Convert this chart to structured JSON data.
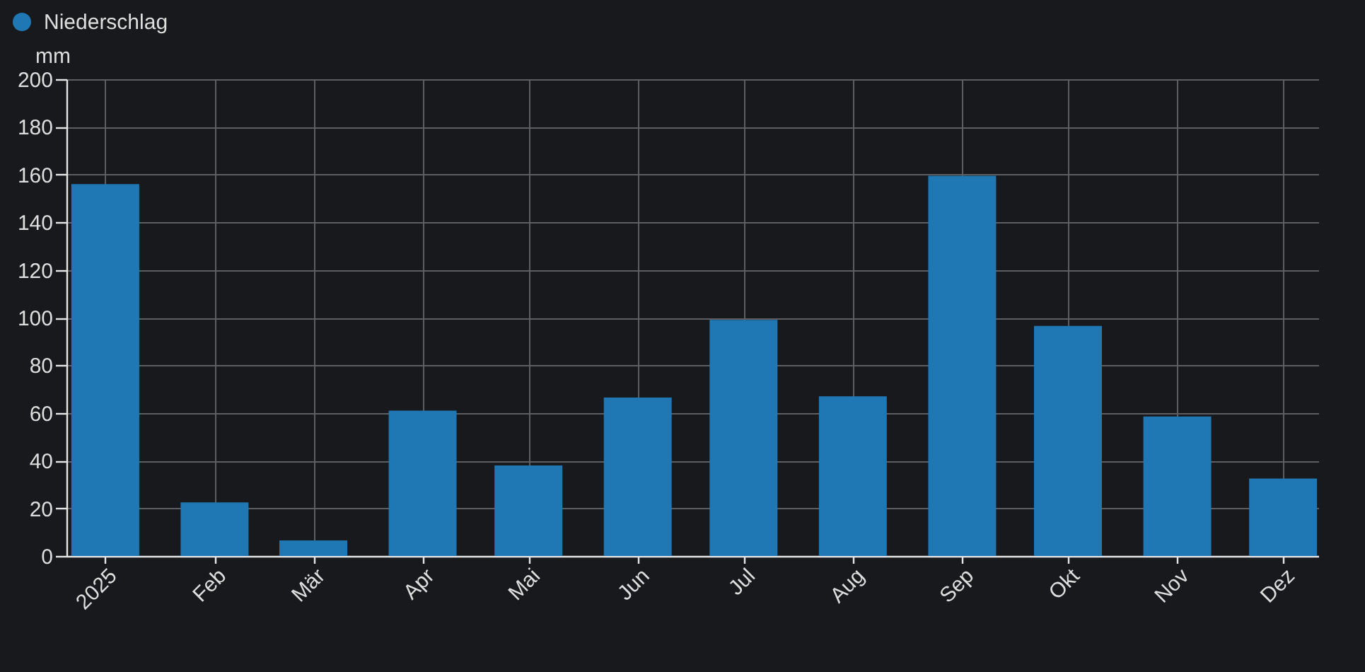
{
  "chart_data": {
    "type": "bar",
    "ylabel": "mm",
    "x": [
      "2025-01",
      "2025-02",
      "2025-03",
      "2025-04",
      "2025-05",
      "2025-06",
      "2025-07",
      "2025-08",
      "2025-09",
      "2025-10",
      "2025-11",
      "2025-12"
    ],
    "series": [
      {
        "name": "Niederschlag",
        "color": "#1f77b4",
        "values": [
          156,
          22.5,
          6.5,
          61,
          38,
          66.5,
          99,
          67,
          159.5,
          96.5,
          58.5,
          32.5
        ]
      }
    ],
    "xlim": [
      "2024-12-21",
      "2025-12-11"
    ],
    "xticks": [
      {
        "value": "2025-01",
        "label": "2025"
      },
      {
        "value": "2025-02",
        "label": "Feb"
      },
      {
        "value": "2025-03",
        "label": "Mär"
      },
      {
        "value": "2025-04",
        "label": "Apr"
      },
      {
        "value": "2025-05",
        "label": "Mai"
      },
      {
        "value": "2025-06",
        "label": "Jun"
      },
      {
        "value": "2025-07",
        "label": "Jul"
      },
      {
        "value": "2025-08",
        "label": "Aug"
      },
      {
        "value": "2025-09",
        "label": "Sep"
      },
      {
        "value": "2025-10",
        "label": "Okt"
      },
      {
        "value": "2025-11",
        "label": "Nov"
      },
      {
        "value": "2025-12",
        "label": "Dez"
      }
    ],
    "ylim": [
      0,
      200
    ],
    "yticks": [
      0,
      20,
      40,
      60,
      80,
      100,
      120,
      140,
      160,
      180,
      200
    ],
    "grid": true,
    "legend": "top left"
  }
}
